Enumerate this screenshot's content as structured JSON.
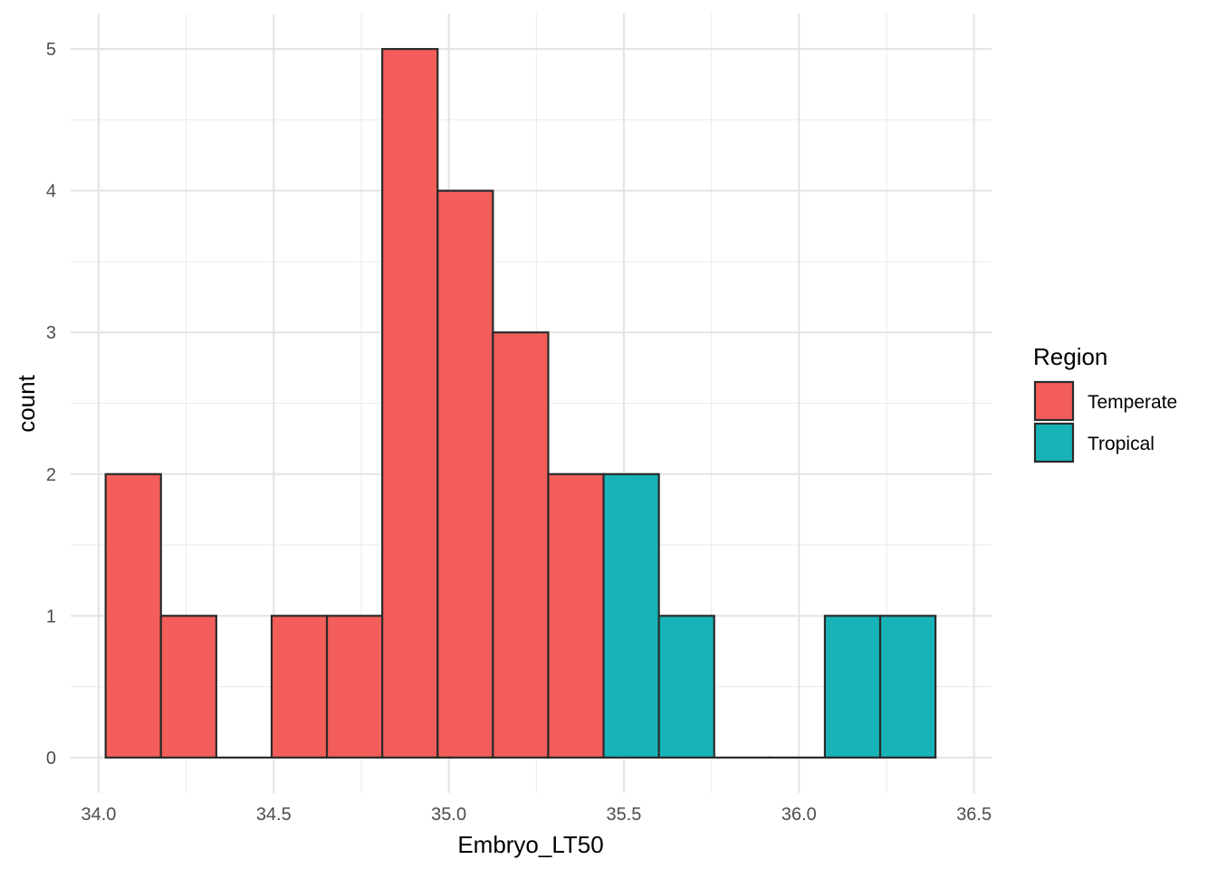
{
  "chart_data": {
    "type": "bar",
    "subtype": "histogram",
    "xlabel": "Embryo_LT50",
    "ylabel": "count",
    "xlim": [
      33.92,
      36.55
    ],
    "ylim": [
      -0.25,
      5.25
    ],
    "x_ticks": [
      34.0,
      34.5,
      35.0,
      35.5,
      36.0,
      36.5
    ],
    "x_tick_labels": [
      "34.0",
      "34.5",
      "35.0",
      "35.5",
      "36.0",
      "36.5"
    ],
    "y_ticks": [
      0,
      1,
      2,
      3,
      4,
      5
    ],
    "y_tick_labels": [
      "0",
      "1",
      "2",
      "3",
      "4",
      "5"
    ],
    "bin_width": 0.158,
    "bins": [
      {
        "x0": 34.02,
        "x1": 34.178,
        "count": 2,
        "group": "Temperate"
      },
      {
        "x0": 34.178,
        "x1": 34.336,
        "count": 1,
        "group": "Temperate"
      },
      {
        "x0": 34.336,
        "x1": 34.494,
        "count": 0,
        "group": "Temperate"
      },
      {
        "x0": 34.494,
        "x1": 34.652,
        "count": 1,
        "group": "Temperate"
      },
      {
        "x0": 34.652,
        "x1": 34.81,
        "count": 1,
        "group": "Temperate"
      },
      {
        "x0": 34.81,
        "x1": 34.968,
        "count": 5,
        "group": "Temperate"
      },
      {
        "x0": 34.968,
        "x1": 35.126,
        "count": 4,
        "group": "Temperate"
      },
      {
        "x0": 35.126,
        "x1": 35.284,
        "count": 3,
        "group": "Temperate"
      },
      {
        "x0": 35.284,
        "x1": 35.442,
        "count": 2,
        "group": "Temperate"
      },
      {
        "x0": 35.442,
        "x1": 35.6,
        "count": 2,
        "group": "Tropical"
      },
      {
        "x0": 35.6,
        "x1": 35.758,
        "count": 1,
        "group": "Tropical"
      },
      {
        "x0": 35.758,
        "x1": 35.916,
        "count": 0,
        "group": "Tropical"
      },
      {
        "x0": 35.916,
        "x1": 36.074,
        "count": 0,
        "group": "Tropical"
      },
      {
        "x0": 36.074,
        "x1": 36.232,
        "count": 1,
        "group": "Tropical"
      },
      {
        "x0": 36.232,
        "x1": 36.39,
        "count": 1,
        "group": "Tropical"
      }
    ],
    "legend": {
      "title": "Region",
      "position": "right",
      "entries": [
        {
          "label": "Temperate",
          "color": "#F8766D"
        },
        {
          "label": "Tropical",
          "color": "#00BFC4"
        }
      ]
    },
    "colors": {
      "Temperate": "#F35E5A",
      "Tropical": "#17B3B7",
      "outline": "#2b2b2b"
    },
    "grid": true
  }
}
